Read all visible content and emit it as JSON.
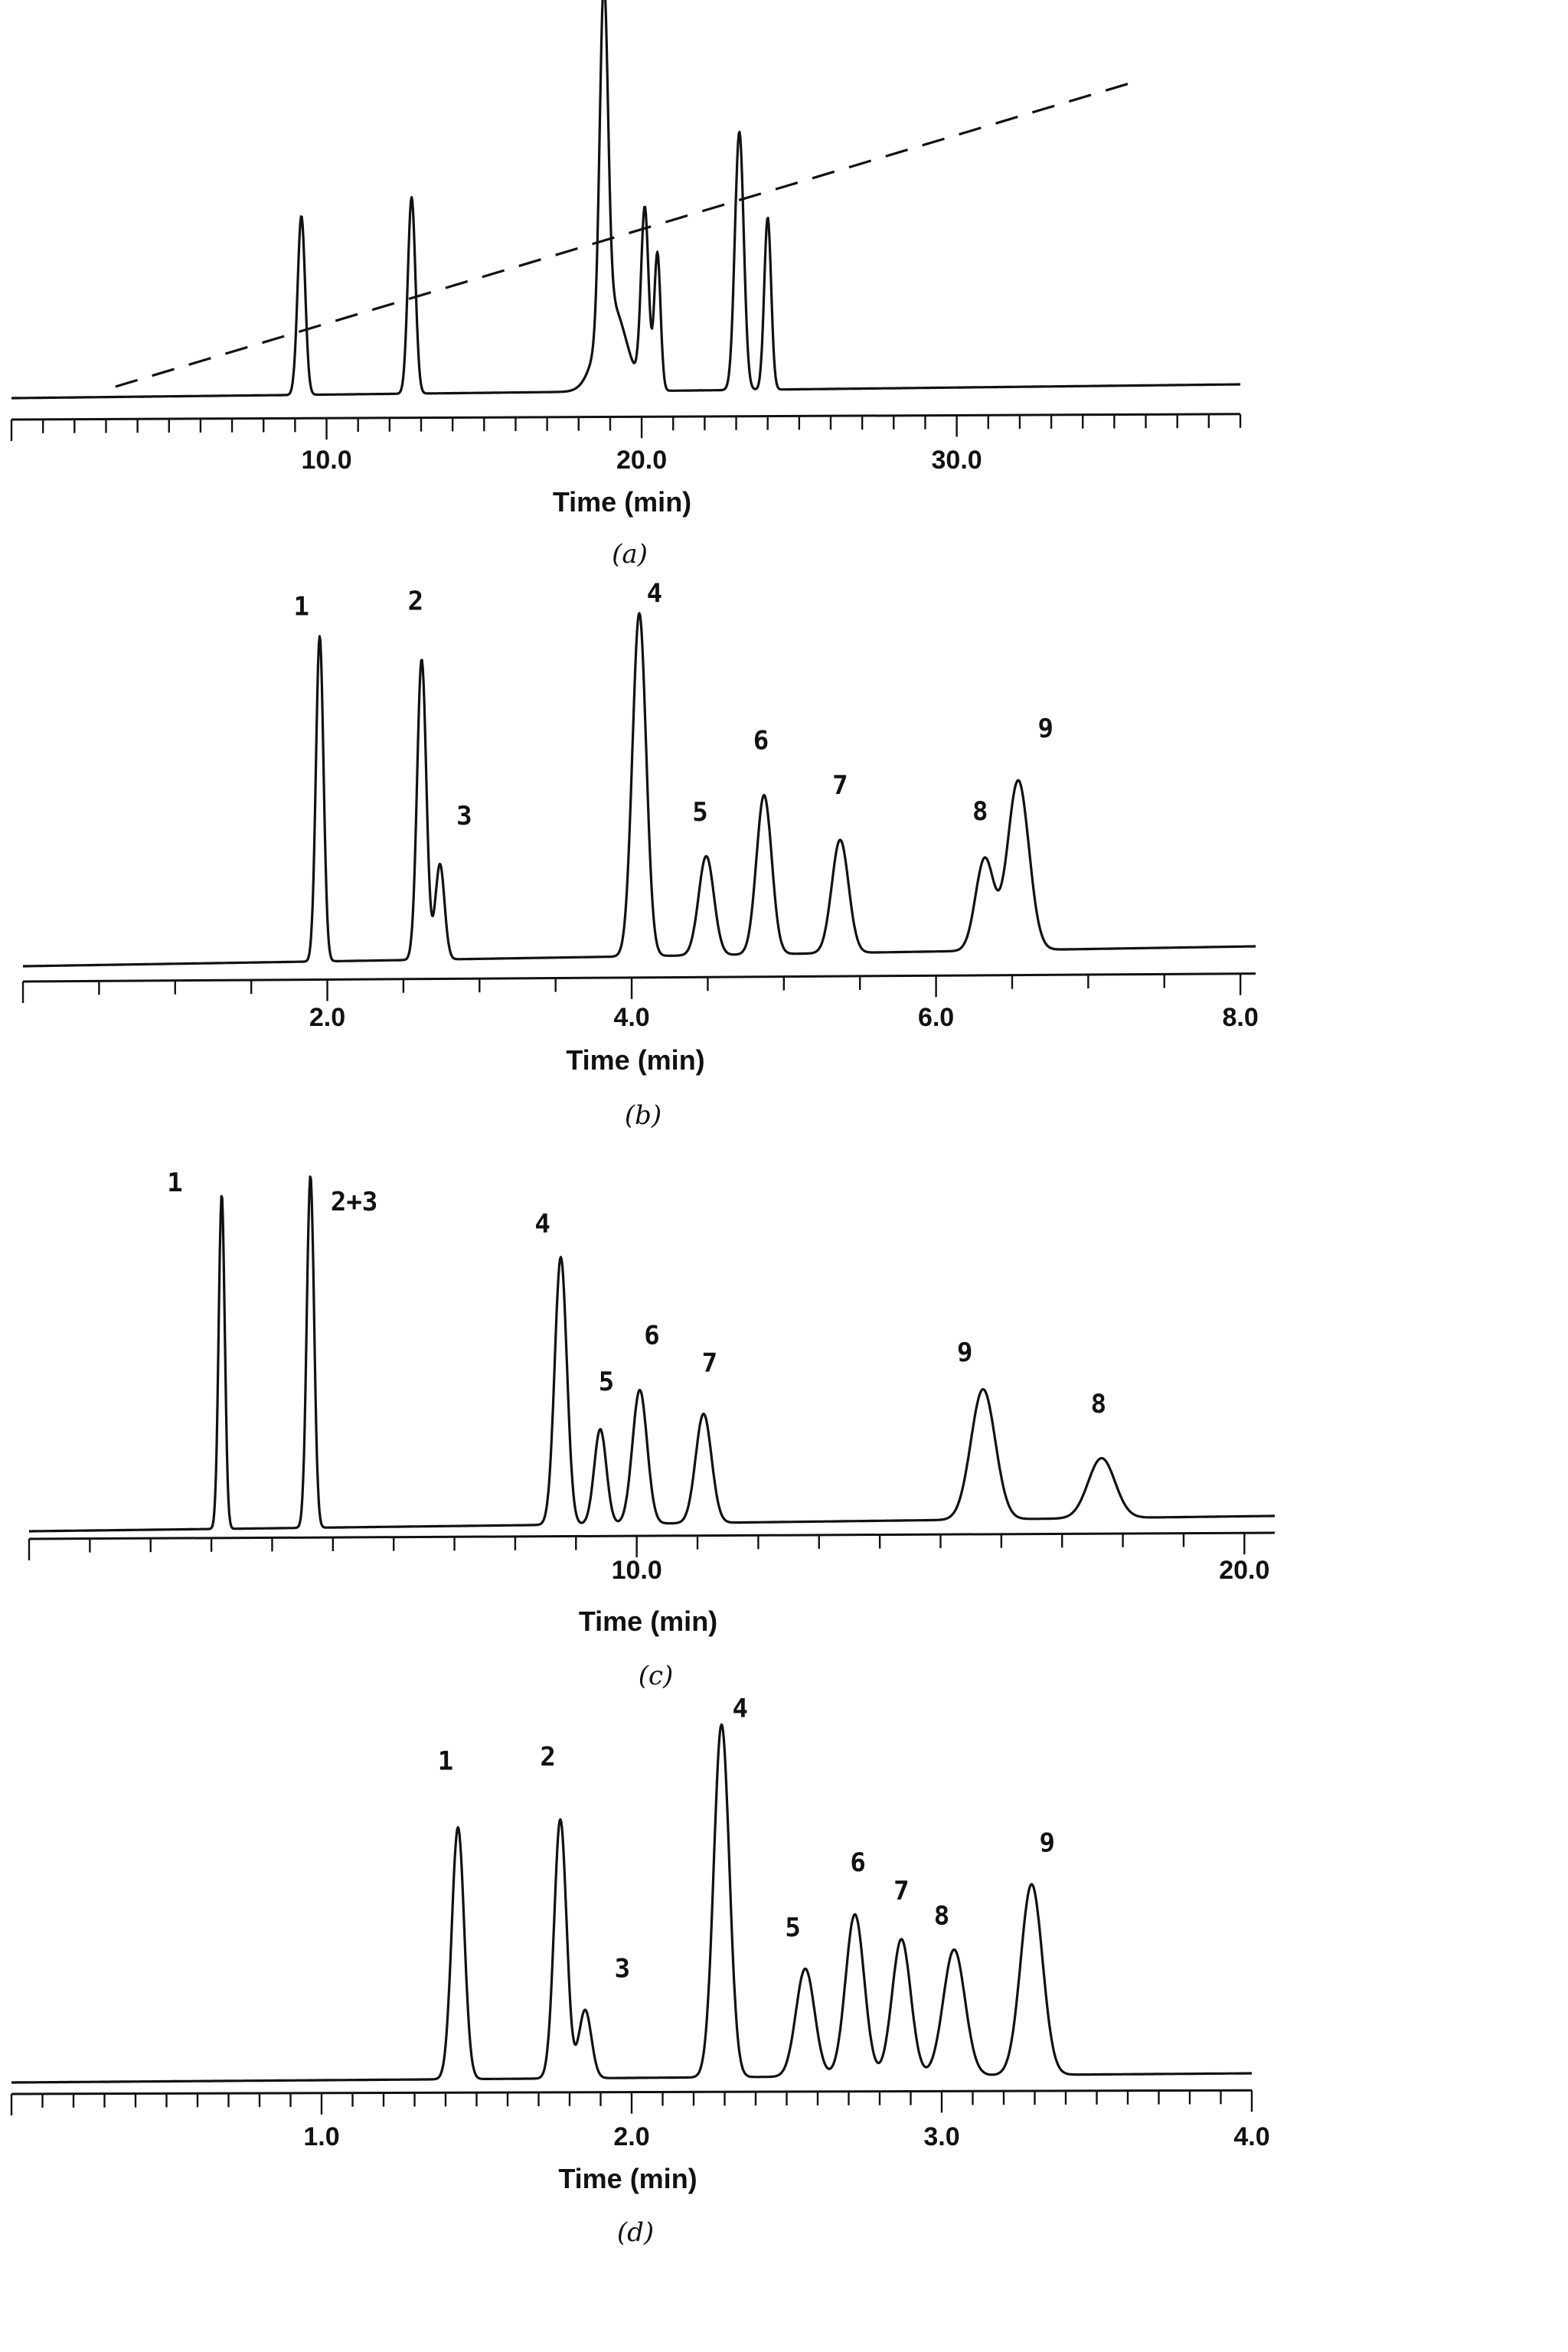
{
  "chart_data": [
    {
      "type": "line",
      "caption": "(a)",
      "xlabel": "Time (min)",
      "xlim": [
        0,
        39
      ],
      "ticks": [
        {
          "v": 10,
          "label": "10.0"
        },
        {
          "v": 20,
          "label": "20.0"
        },
        {
          "v": 30,
          "label": "30.0"
        }
      ],
      "gradient": {
        "style": "dashed",
        "x": [
          3.3,
          35.8
        ]
      },
      "peaks": [
        {
          "rt": 9.2,
          "height": 0.52,
          "width": 0.12
        },
        {
          "rt": 12.7,
          "height": 0.57,
          "width": 0.12
        },
        {
          "rt": 18.8,
          "height": 0.98,
          "width": 0.13
        },
        {
          "rt": 19.05,
          "height": 0.25,
          "width": 0.45
        },
        {
          "rt": 20.1,
          "height": 0.52,
          "width": 0.12
        },
        {
          "rt": 20.5,
          "height": 0.4,
          "width": 0.1
        },
        {
          "rt": 23.1,
          "height": 0.75,
          "width": 0.14
        },
        {
          "rt": 24.0,
          "height": 0.5,
          "width": 0.11
        }
      ],
      "labels": []
    },
    {
      "type": "line",
      "caption": "(b)",
      "xlabel": "Time (min)",
      "xlim": [
        0,
        8.1
      ],
      "ticks": [
        {
          "v": 2,
          "label": "2.0"
        },
        {
          "v": 4,
          "label": "4.0"
        },
        {
          "v": 6,
          "label": "6.0"
        },
        {
          "v": 8,
          "label": "8.0"
        }
      ],
      "peaks": [
        {
          "rt": 1.95,
          "height": 0.92,
          "width": 0.025
        },
        {
          "rt": 2.62,
          "height": 0.85,
          "width": 0.03
        },
        {
          "rt": 2.74,
          "height": 0.27,
          "width": 0.03
        },
        {
          "rt": 4.05,
          "height": 0.97,
          "width": 0.045
        },
        {
          "rt": 4.49,
          "height": 0.28,
          "width": 0.05
        },
        {
          "rt": 4.87,
          "height": 0.45,
          "width": 0.05
        },
        {
          "rt": 5.37,
          "height": 0.32,
          "width": 0.055
        },
        {
          "rt": 6.32,
          "height": 0.26,
          "width": 0.06
        },
        {
          "rt": 6.54,
          "height": 0.48,
          "width": 0.07
        }
      ],
      "labels": [
        {
          "text": "1",
          "rt": 1.83,
          "height": 0.98
        },
        {
          "text": "2",
          "rt": 2.58,
          "height": 0.99
        },
        {
          "text": "3",
          "rt": 2.9,
          "height": 0.38
        },
        {
          "text": "4",
          "rt": 4.15,
          "height": 1.0
        },
        {
          "text": "5",
          "rt": 4.45,
          "height": 0.38
        },
        {
          "text": "6",
          "rt": 4.85,
          "height": 0.58
        },
        {
          "text": "7",
          "rt": 5.37,
          "height": 0.45
        },
        {
          "text": "8",
          "rt": 6.29,
          "height": 0.37
        },
        {
          "text": "9",
          "rt": 6.72,
          "height": 0.6
        }
      ]
    },
    {
      "type": "line",
      "caption": "(c)",
      "xlabel": "Time (min)",
      "xlim": [
        0,
        20.5
      ],
      "ticks": [
        {
          "v": 10,
          "label": "10.0"
        },
        {
          "v": 20,
          "label": "20.0"
        }
      ],
      "peaks": [
        {
          "rt": 3.17,
          "height": 0.95,
          "width": 0.05
        },
        {
          "rt": 4.63,
          "height": 1.0,
          "width": 0.06
        },
        {
          "rt": 8.75,
          "height": 0.76,
          "width": 0.1
        },
        {
          "rt": 9.4,
          "height": 0.27,
          "width": 0.1
        },
        {
          "rt": 10.05,
          "height": 0.38,
          "width": 0.12
        },
        {
          "rt": 11.1,
          "height": 0.31,
          "width": 0.13
        },
        {
          "rt": 15.7,
          "height": 0.37,
          "width": 0.2
        },
        {
          "rt": 17.65,
          "height": 0.17,
          "width": 0.22
        }
      ],
      "labels": [
        {
          "text": "1",
          "rt": 2.4,
          "height": 0.96
        },
        {
          "text": "2+3",
          "rt": 5.35,
          "height": 0.9
        },
        {
          "text": "4",
          "rt": 8.45,
          "height": 0.83
        },
        {
          "text": "5",
          "rt": 9.5,
          "height": 0.38
        },
        {
          "text": "6",
          "rt": 10.25,
          "height": 0.51
        },
        {
          "text": "7",
          "rt": 11.2,
          "height": 0.43
        },
        {
          "text": "9",
          "rt": 15.4,
          "height": 0.45
        },
        {
          "text": "8",
          "rt": 17.6,
          "height": 0.3
        }
      ]
    },
    {
      "type": "line",
      "caption": "(d)",
      "xlabel": "Time (min)",
      "xlim": [
        0,
        4.0
      ],
      "ticks": [
        {
          "v": 1,
          "label": "1.0"
        },
        {
          "v": 2,
          "label": "2.0"
        },
        {
          "v": 3,
          "label": "3.0"
        },
        {
          "v": 4,
          "label": "4.0"
        }
      ],
      "peaks": [
        {
          "rt": 1.44,
          "height": 0.7,
          "width": 0.02
        },
        {
          "rt": 1.77,
          "height": 0.72,
          "width": 0.02
        },
        {
          "rt": 1.85,
          "height": 0.19,
          "width": 0.02
        },
        {
          "rt": 2.29,
          "height": 0.98,
          "width": 0.025
        },
        {
          "rt": 2.56,
          "height": 0.3,
          "width": 0.03
        },
        {
          "rt": 2.72,
          "height": 0.45,
          "width": 0.03
        },
        {
          "rt": 2.87,
          "height": 0.38,
          "width": 0.03
        },
        {
          "rt": 3.04,
          "height": 0.35,
          "width": 0.035
        },
        {
          "rt": 3.29,
          "height": 0.53,
          "width": 0.035
        }
      ],
      "labels": [
        {
          "text": "1",
          "rt": 1.4,
          "height": 0.86
        },
        {
          "text": "2",
          "rt": 1.73,
          "height": 0.87
        },
        {
          "text": "3",
          "rt": 1.97,
          "height": 0.28
        },
        {
          "text": "4",
          "rt": 2.35,
          "height": 1.0
        },
        {
          "text": "5",
          "rt": 2.52,
          "height": 0.39
        },
        {
          "text": "6",
          "rt": 2.73,
          "height": 0.57
        },
        {
          "text": "7",
          "rt": 2.87,
          "height": 0.49
        },
        {
          "text": "8",
          "rt": 3.0,
          "height": 0.42
        },
        {
          "text": "9",
          "rt": 3.34,
          "height": 0.62
        }
      ]
    }
  ]
}
